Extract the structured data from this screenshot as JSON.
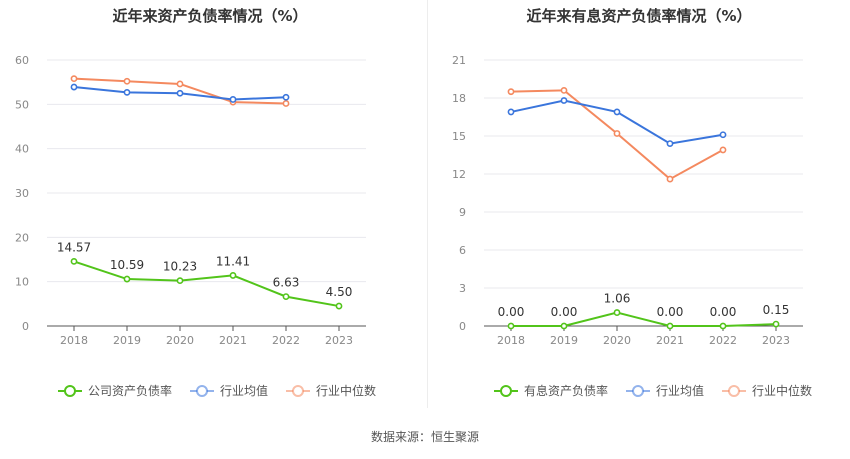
{
  "source": "数据来源：恒生聚源",
  "chart_data": [
    {
      "type": "line",
      "title": "近年来资产负债率情况（%）",
      "categories": [
        "2018",
        "2019",
        "2020",
        "2021",
        "2022",
        "2023"
      ],
      "ylim": [
        0,
        60
      ],
      "yticks": [
        0,
        10,
        20,
        30,
        40,
        50,
        60
      ],
      "grid": true,
      "legend_position": "bottom",
      "series": [
        {
          "name": "公司资产负债率",
          "color": "#52c41a",
          "labels": true,
          "values": [
            14.57,
            10.59,
            10.23,
            11.41,
            6.63,
            4.5
          ],
          "value_labels": [
            "14.57",
            "10.59",
            "10.23",
            "11.41",
            "6.63",
            "4.50"
          ]
        },
        {
          "name": "行业均值",
          "color": "#3a75dc",
          "labels": false,
          "values": [
            53.9,
            52.7,
            52.5,
            51.1,
            51.6,
            null
          ]
        },
        {
          "name": "行业中位数",
          "color": "#f4895f",
          "labels": false,
          "values": [
            55.8,
            55.2,
            54.6,
            50.5,
            50.2,
            null
          ]
        }
      ]
    },
    {
      "type": "line",
      "title": "近年来有息资产负债率情况（%）",
      "categories": [
        "2018",
        "2019",
        "2020",
        "2021",
        "2022",
        "2023"
      ],
      "ylim": [
        0,
        21
      ],
      "yticks": [
        0,
        3,
        6,
        9,
        12,
        15,
        18,
        21
      ],
      "grid": true,
      "legend_position": "bottom",
      "series": [
        {
          "name": "有息资产负债率",
          "color": "#52c41a",
          "labels": true,
          "values": [
            0.0,
            0.0,
            1.06,
            0.0,
            0.0,
            0.15
          ],
          "value_labels": [
            "0.00",
            "0.00",
            "1.06",
            "0.00",
            "0.00",
            "0.15"
          ]
        },
        {
          "name": "行业均值",
          "color": "#3a75dc",
          "labels": false,
          "values": [
            16.9,
            17.8,
            16.9,
            14.4,
            15.1,
            null
          ]
        },
        {
          "name": "行业中位数",
          "color": "#f4895f",
          "labels": false,
          "values": [
            18.5,
            18.6,
            15.2,
            11.6,
            13.9,
            null
          ]
        }
      ]
    }
  ]
}
